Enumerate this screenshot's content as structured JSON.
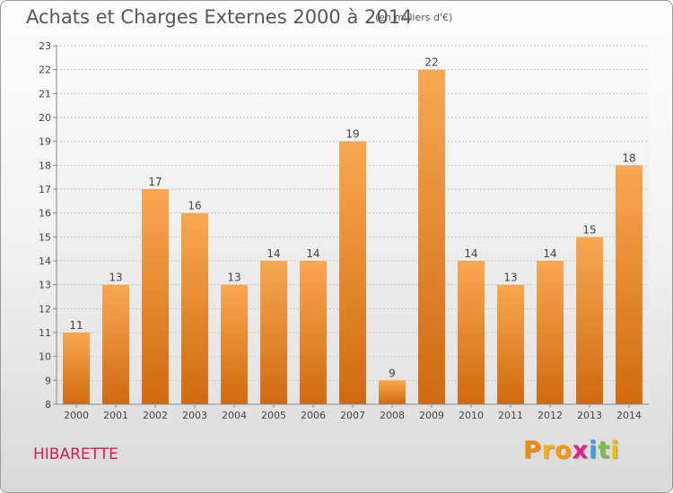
{
  "header": {
    "title": "Achats et Charges Externes 2000 à 2014",
    "subtitle": "(en milliers d'€)"
  },
  "footer": {
    "commune": "HIBARETTE",
    "logo_letters": [
      "P",
      "r",
      "o",
      "x",
      "i",
      "t",
      "i"
    ],
    "logo_colors": [
      "#f08a00",
      "#ffb000",
      "#ff9800",
      "#dd2288",
      "#3aa0e0",
      "#7ac142",
      "#f0c000"
    ]
  },
  "chart_data": {
    "type": "bar",
    "title": "Achats et Charges Externes 2000 à 2014",
    "subtitle": "(en milliers d'€)",
    "categories": [
      "2000",
      "2001",
      "2002",
      "2003",
      "2004",
      "2005",
      "2006",
      "2007",
      "2008",
      "2009",
      "2010",
      "2011",
      "2012",
      "2013",
      "2014"
    ],
    "values": [
      11,
      13,
      17,
      16,
      13,
      14,
      14,
      19,
      9,
      22,
      14,
      13,
      14,
      15,
      18
    ],
    "ylim": [
      8,
      23
    ],
    "yticks": [
      8,
      9,
      10,
      11,
      12,
      13,
      14,
      15,
      16,
      17,
      18,
      19,
      20,
      21,
      22,
      23
    ],
    "grid": true,
    "bar_color_top": "#f8a850",
    "bar_color_bottom": "#d06a10"
  }
}
